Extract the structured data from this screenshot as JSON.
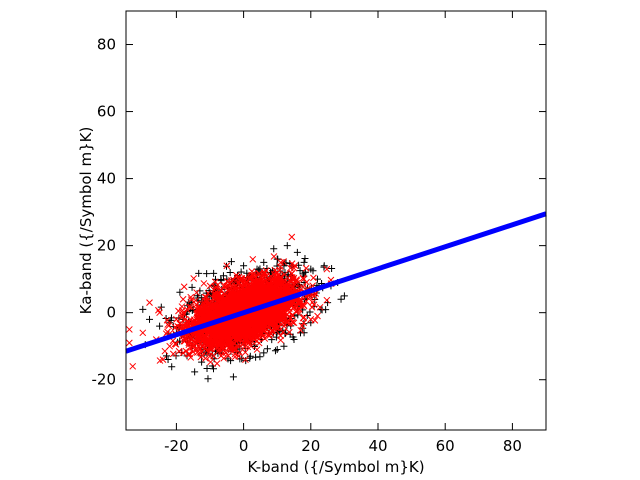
{
  "chart_data": {
    "type": "scatter",
    "xlabel": "K-band ({/Symbol m}K)",
    "ylabel": "Ka-band ({/Symbol m}K)",
    "xlim": [
      -35,
      90
    ],
    "ylim": [
      -35,
      90
    ],
    "x_ticks": [
      -20,
      0,
      20,
      40,
      60,
      80
    ],
    "y_ticks": [
      -20,
      0,
      20,
      40,
      60,
      80
    ],
    "x_tick_labels": [
      "-20",
      "0",
      "20",
      "40",
      "60",
      "80"
    ],
    "y_tick_labels": [
      "-20",
      "0",
      "20",
      "40",
      "60",
      "80"
    ],
    "grid": false,
    "series": [
      {
        "marker": "plus",
        "color": "#000000",
        "description": "black plus markers, dense cloud centred near (0, 0)",
        "points": [
          [
            -30,
            1
          ],
          [
            -28,
            -2
          ],
          [
            -25,
            -4
          ],
          [
            -22,
            -3
          ],
          [
            -20,
            -6
          ],
          [
            -18,
            -2
          ],
          [
            -15,
            1
          ],
          [
            -12,
            3
          ],
          [
            -10,
            5
          ],
          [
            -8,
            7
          ],
          [
            -6,
            11
          ],
          [
            -5,
            10
          ],
          [
            -4,
            12
          ],
          [
            -2,
            9
          ],
          [
            0,
            14
          ],
          [
            2,
            11
          ],
          [
            4,
            13
          ],
          [
            6,
            15
          ],
          [
            8,
            12
          ],
          [
            10,
            16
          ],
          [
            12,
            14
          ],
          [
            13,
            20
          ],
          [
            14,
            11
          ],
          [
            16,
            18
          ],
          [
            18,
            15
          ],
          [
            20,
            13
          ],
          [
            22,
            10
          ],
          [
            24,
            14
          ],
          [
            26,
            8
          ],
          [
            28,
            9
          ],
          [
            30,
            5
          ],
          [
            29,
            4
          ],
          [
            25,
            3
          ],
          [
            23,
            1
          ],
          [
            20,
            -3
          ],
          [
            18,
            -6
          ],
          [
            15,
            -8
          ],
          [
            12,
            -10
          ],
          [
            10,
            -11
          ],
          [
            6,
            -12
          ],
          [
            2,
            -13
          ],
          [
            -2,
            -10
          ],
          [
            -6,
            -9
          ],
          [
            -8,
            -7
          ],
          [
            -12,
            -9
          ],
          [
            -14,
            -5
          ],
          [
            -16,
            -7
          ],
          [
            -10,
            -2
          ],
          [
            -5,
            2
          ],
          [
            0,
            4
          ],
          [
            5,
            6
          ],
          [
            8,
            3
          ],
          [
            12,
            8
          ],
          [
            15,
            5
          ],
          [
            18,
            9
          ],
          [
            3,
            -3
          ]
        ]
      },
      {
        "marker": "cross",
        "color": "#ff0000",
        "description": "red x markers, dense elongated cloud centred near (0, 0)",
        "points": [
          [
            -34,
            -5
          ],
          [
            -34,
            -9
          ],
          [
            -33,
            -16
          ],
          [
            -30,
            -6
          ],
          [
            -26,
            -8
          ],
          [
            -24,
            -14
          ],
          [
            -22,
            -10
          ],
          [
            -20,
            -2
          ],
          [
            -18,
            -12
          ],
          [
            -16,
            -5
          ],
          [
            -14,
            -9
          ],
          [
            -12,
            -4
          ],
          [
            -10,
            -13
          ],
          [
            -8,
            -6
          ],
          [
            -6,
            3
          ],
          [
            -4,
            -10
          ],
          [
            -2,
            7
          ],
          [
            0,
            -8
          ],
          [
            2,
            10
          ],
          [
            4,
            -11
          ],
          [
            6,
            12
          ],
          [
            8,
            -6
          ],
          [
            10,
            9
          ],
          [
            12,
            -4
          ],
          [
            14,
            8
          ],
          [
            16,
            4
          ],
          [
            18,
            2
          ],
          [
            20,
            -2
          ],
          [
            22,
            -1
          ],
          [
            -28,
            3
          ],
          [
            -25,
            0
          ],
          [
            -18,
            4
          ],
          [
            -14,
            6
          ],
          [
            -10,
            8
          ],
          [
            -5,
            14
          ],
          [
            0,
            5
          ],
          [
            3,
            3
          ],
          [
            7,
            -2
          ],
          [
            11,
            1
          ],
          [
            15,
            -3
          ],
          [
            -8,
            0
          ],
          [
            -4,
            -2
          ],
          [
            1,
            -4
          ],
          [
            5,
            0
          ]
        ]
      }
    ],
    "fit_line": {
      "color": "#0000ff",
      "from": [
        -35,
        -11.5
      ],
      "to": [
        90,
        29.5
      ]
    }
  }
}
